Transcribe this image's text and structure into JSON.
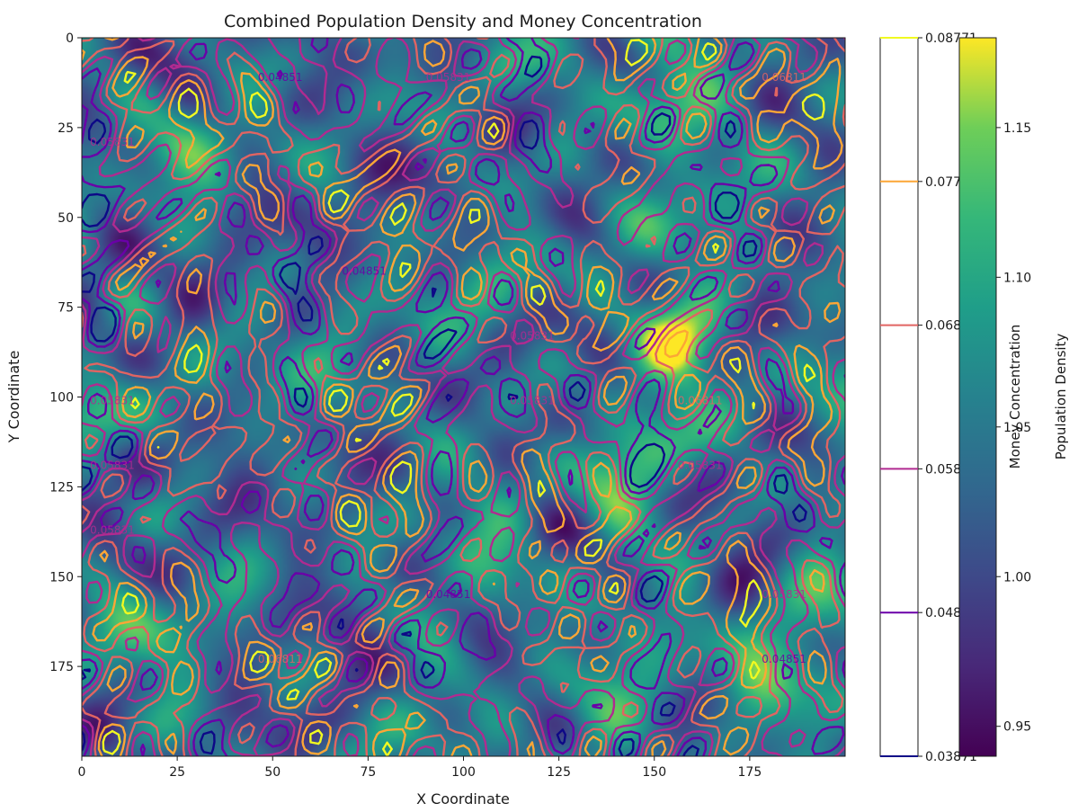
{
  "chart_data": {
    "type": "heatmap",
    "title": "Combined Population Density and Money Concentration",
    "xlabel": "X Coordinate",
    "ylabel": "Y Coordinate",
    "xlim": [
      0,
      200
    ],
    "ylim": [
      200,
      0
    ],
    "x_ticks": [
      0,
      25,
      50,
      75,
      100,
      125,
      150,
      175
    ],
    "y_ticks": [
      0,
      25,
      50,
      75,
      100,
      125,
      150,
      175
    ],
    "grid": false,
    "heatmap": {
      "colormap": "viridis",
      "colorbar_label": "Population Density",
      "range": [
        0.94,
        1.18
      ],
      "colorbar_ticks": [
        0.95,
        1.0,
        1.05,
        1.1,
        1.15
      ]
    },
    "contours": {
      "colormap": "plasma",
      "colorbar_label": "Money Concentration",
      "levels": [
        {
          "value": 0.03871,
          "label": "0.03871",
          "color": "#0d0887"
        },
        {
          "value": 0.04851,
          "label": "0.04851",
          "color": "#6a00a8"
        },
        {
          "value": 0.05831,
          "label": "0.05831",
          "color": "#b12a90"
        },
        {
          "value": 0.06811,
          "label": "0.06811",
          "color": "#e16462"
        },
        {
          "value": 0.07791,
          "label": "0.07791",
          "color": "#fca636"
        },
        {
          "value": 0.08771,
          "label": "0.08771",
          "color": "#f0f921"
        }
      ],
      "inline_labels": [
        "0.06811",
        "0.05831",
        "0.04851"
      ]
    }
  }
}
